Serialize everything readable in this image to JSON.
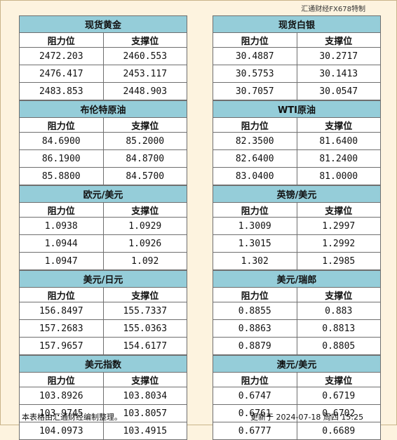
{
  "brand": "汇通财经FX678特制",
  "headers": {
    "resistance": "阻力位",
    "support": "支撑位"
  },
  "left": [
    {
      "title": "现货黄金",
      "rows": [
        [
          "2472.203",
          "2460.553"
        ],
        [
          "2476.417",
          "2453.117"
        ],
        [
          "2483.853",
          "2448.903"
        ]
      ]
    },
    {
      "title": "布伦特原油",
      "rows": [
        [
          "84.6900",
          "85.2000"
        ],
        [
          "86.1900",
          "84.8700"
        ],
        [
          "85.8800",
          "84.5700"
        ]
      ]
    },
    {
      "title": "欧元/美元",
      "rows": [
        [
          "1.0938",
          "1.0929"
        ],
        [
          "1.0944",
          "1.0926"
        ],
        [
          "1.0947",
          "1.092"
        ]
      ]
    },
    {
      "title": "美元/日元",
      "rows": [
        [
          "156.8497",
          "155.7337"
        ],
        [
          "157.2683",
          "155.0363"
        ],
        [
          "157.9657",
          "154.6177"
        ]
      ]
    },
    {
      "title": "美元指数",
      "rows": [
        [
          "103.8926",
          "103.8034"
        ],
        [
          "103.9745",
          "103.8057"
        ],
        [
          "104.0973",
          "103.4915"
        ]
      ]
    }
  ],
  "right": [
    {
      "title": "现货白银",
      "rows": [
        [
          "30.4887",
          "30.2717"
        ],
        [
          "30.5753",
          "30.1413"
        ],
        [
          "30.7057",
          "30.0547"
        ]
      ]
    },
    {
      "title": "WTI原油",
      "rows": [
        [
          "82.3500",
          "81.6400"
        ],
        [
          "82.6400",
          "81.2400"
        ],
        [
          "83.0400",
          "81.0000"
        ]
      ]
    },
    {
      "title": "英镑/美元",
      "rows": [
        [
          "1.3009",
          "1.2997"
        ],
        [
          "1.3015",
          "1.2992"
        ],
        [
          "1.302",
          "1.2985"
        ]
      ]
    },
    {
      "title": "美元/瑞郎",
      "rows": [
        [
          "0.8855",
          "0.883"
        ],
        [
          "0.8863",
          "0.8813"
        ],
        [
          "0.8879",
          "0.8805"
        ]
      ]
    },
    {
      "title": "澳元/美元",
      "rows": [
        [
          "0.6747",
          "0.6719"
        ],
        [
          "0.6761",
          "0.6702"
        ],
        [
          "0.6777",
          "0.6689"
        ]
      ]
    }
  ],
  "footer": {
    "note": "本表格由汇通财经编制整理。",
    "updated": "更新于 2024-07-18 周四 15:25"
  }
}
